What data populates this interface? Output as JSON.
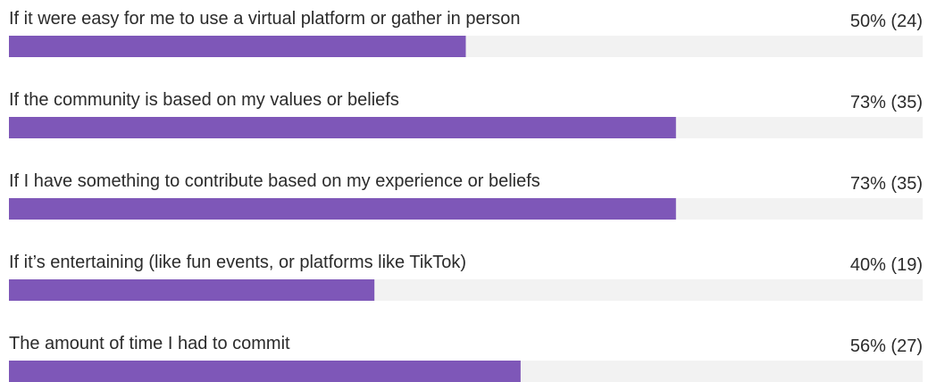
{
  "chart_data": {
    "type": "bar",
    "categories": [
      "If it were easy for me to use a virtual platform or gather in person",
      "If the community is based on my values or beliefs",
      "If I have something to contribute based on my experience or beliefs",
      "If it’s entertaining (like fun events, or platforms like TikTok)",
      "The amount of time I had to commit"
    ],
    "values": [
      50,
      73,
      73,
      40,
      56
    ],
    "value_labels": [
      "50% (24)",
      "73% (35)",
      "73% (35)",
      "40% (19)",
      "56% (27)"
    ],
    "color": "#7e57b8",
    "track_color": "#f2f2f2",
    "xlim": [
      0,
      100
    ]
  }
}
